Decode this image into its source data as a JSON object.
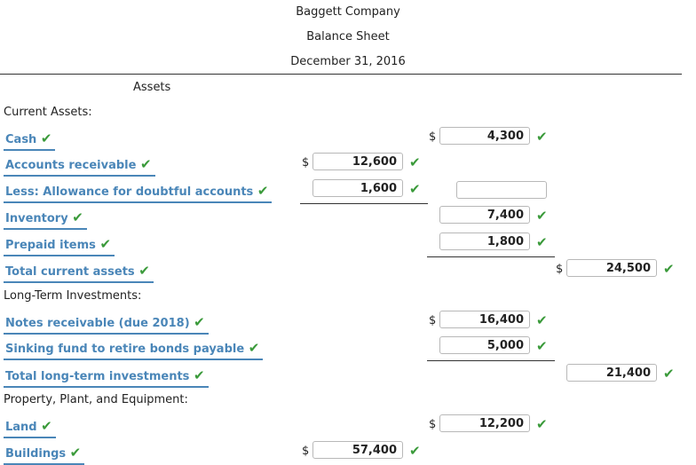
{
  "header": {
    "company": "Baggett Company",
    "statement": "Balance Sheet",
    "date": "December 31, 2016"
  },
  "assets_label": "Assets",
  "sections": {
    "current": "Current Assets:",
    "long_term": "Long-Term Investments:",
    "ppe": "Property, Plant, and Equipment:"
  },
  "rows": {
    "cash": {
      "label": "Cash",
      "value": "4,300"
    },
    "ar": {
      "label": "Accounts receivable",
      "value": "12,600"
    },
    "allow": {
      "label": "Less: Allowance for doubtful accounts",
      "value": "1,600",
      "net": ""
    },
    "inventory": {
      "label": "Inventory",
      "value": "7,400"
    },
    "prepaid": {
      "label": "Prepaid items",
      "value": "1,800"
    },
    "tca": {
      "label": "Total current assets",
      "value": "24,500"
    },
    "notes": {
      "label": "Notes receivable (due 2018)",
      "value": "16,400"
    },
    "sinking": {
      "label": "Sinking fund to retire bonds payable",
      "value": "5,000"
    },
    "tlti": {
      "label": "Total long-term investments",
      "value": "21,400"
    },
    "land": {
      "label": "Land",
      "value": "12,200"
    },
    "buildings": {
      "label": "Buildings",
      "value": "57,400"
    }
  },
  "symbols": {
    "dollar": "$",
    "check": "✔"
  }
}
